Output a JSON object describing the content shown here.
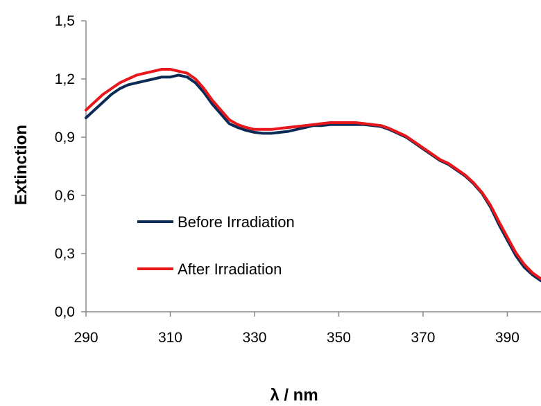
{
  "chart_data": {
    "type": "line",
    "title": "",
    "xlabel": "λ / nm",
    "ylabel": "Extinction",
    "xlim": [
      290,
      398
    ],
    "ylim": [
      0.0,
      1.5
    ],
    "x_ticks": [
      "290",
      "310",
      "330",
      "350",
      "370",
      "390"
    ],
    "y_ticks": [
      "0,0",
      "0,3",
      "0,6",
      "0,9",
      "1,2",
      "1,5"
    ],
    "grid": false,
    "legend": "center-left",
    "series": [
      {
        "name": "Before Irradiation",
        "color": "#0b2a55",
        "x": [
          290,
          292,
          294,
          296,
          298,
          300,
          302,
          304,
          306,
          308,
          310,
          312,
          314,
          316,
          318,
          320,
          322,
          324,
          326,
          328,
          330,
          332,
          334,
          336,
          338,
          340,
          342,
          344,
          346,
          348,
          350,
          352,
          354,
          356,
          358,
          360,
          362,
          364,
          366,
          368,
          370,
          372,
          374,
          376,
          378,
          380,
          382,
          384,
          386,
          388,
          390,
          392,
          394,
          396,
          398
        ],
        "y": [
          1.0,
          1.04,
          1.08,
          1.12,
          1.15,
          1.17,
          1.18,
          1.19,
          1.2,
          1.21,
          1.21,
          1.22,
          1.21,
          1.18,
          1.13,
          1.07,
          1.02,
          0.97,
          0.95,
          0.935,
          0.925,
          0.92,
          0.92,
          0.925,
          0.93,
          0.94,
          0.95,
          0.96,
          0.96,
          0.965,
          0.965,
          0.965,
          0.965,
          0.965,
          0.96,
          0.955,
          0.94,
          0.92,
          0.9,
          0.87,
          0.84,
          0.81,
          0.78,
          0.76,
          0.73,
          0.7,
          0.66,
          0.61,
          0.54,
          0.45,
          0.37,
          0.29,
          0.23,
          0.19,
          0.16
        ]
      },
      {
        "name": "After Irradiation",
        "color": "#e8171c",
        "x": [
          290,
          292,
          294,
          296,
          298,
          300,
          302,
          304,
          306,
          308,
          310,
          312,
          314,
          316,
          318,
          320,
          322,
          324,
          326,
          328,
          330,
          332,
          334,
          336,
          338,
          340,
          342,
          344,
          346,
          348,
          350,
          352,
          354,
          356,
          358,
          360,
          362,
          364,
          366,
          368,
          370,
          372,
          374,
          376,
          378,
          380,
          382,
          384,
          386,
          388,
          390,
          392,
          394,
          396,
          398
        ],
        "y": [
          1.04,
          1.08,
          1.12,
          1.15,
          1.18,
          1.2,
          1.22,
          1.23,
          1.24,
          1.25,
          1.25,
          1.24,
          1.23,
          1.2,
          1.15,
          1.09,
          1.04,
          0.99,
          0.965,
          0.95,
          0.94,
          0.94,
          0.94,
          0.945,
          0.95,
          0.955,
          0.96,
          0.965,
          0.97,
          0.975,
          0.975,
          0.975,
          0.975,
          0.97,
          0.965,
          0.96,
          0.945,
          0.925,
          0.905,
          0.875,
          0.845,
          0.815,
          0.785,
          0.765,
          0.735,
          0.705,
          0.665,
          0.615,
          0.55,
          0.465,
          0.385,
          0.305,
          0.245,
          0.2,
          0.17
        ]
      }
    ]
  }
}
